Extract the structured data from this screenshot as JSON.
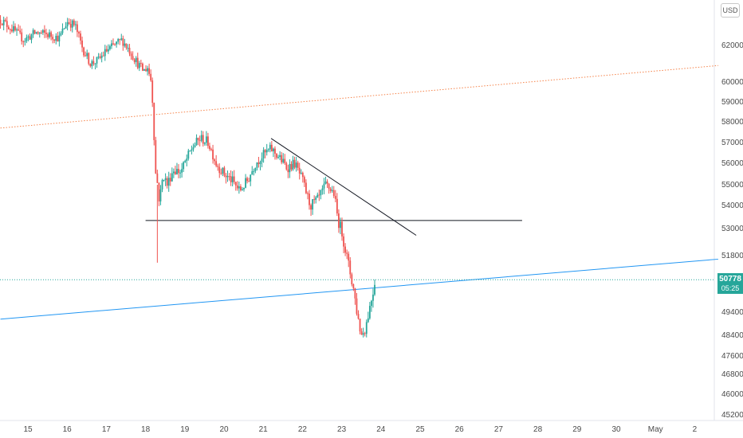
{
  "currency_label": "USD",
  "last_price": {
    "value": "50778",
    "countdown": "05:25",
    "color": "#26a69a"
  },
  "chart_data": {
    "type": "candlestick",
    "title": "",
    "y_ticks": [
      45200,
      46000,
      46800,
      47600,
      48400,
      49400,
      51800,
      53000,
      54000,
      55000,
      56000,
      57000,
      58000,
      59000,
      60000,
      62000
    ],
    "x_ticks": [
      "15",
      "16",
      "17",
      "18",
      "19",
      "20",
      "21",
      "22",
      "23",
      "24",
      "25",
      "26",
      "27",
      "28",
      "29",
      "30",
      "May",
      "2"
    ],
    "x_tick_days": [
      15,
      16,
      17,
      18,
      19,
      20,
      21,
      22,
      23,
      24,
      25,
      26,
      27,
      28,
      29,
      30,
      31,
      32
    ],
    "colors": {
      "up": "#26a69a",
      "down": "#ef5350"
    },
    "close_path": [
      [
        14.3,
        63400
      ],
      [
        14.6,
        62900
      ],
      [
        14.9,
        62300
      ],
      [
        15.2,
        62700
      ],
      [
        15.5,
        62600
      ],
      [
        15.8,
        62400
      ],
      [
        16.0,
        63300
      ],
      [
        16.2,
        63100
      ],
      [
        16.4,
        61800
      ],
      [
        16.6,
        61000
      ],
      [
        16.8,
        61200
      ],
      [
        17.0,
        61700
      ],
      [
        17.2,
        62000
      ],
      [
        17.4,
        62300
      ],
      [
        17.6,
        61700
      ],
      [
        17.8,
        61000
      ],
      [
        17.95,
        60600
      ],
      [
        18.05,
        60800
      ],
      [
        18.15,
        60000
      ],
      [
        18.2,
        58200
      ],
      [
        18.25,
        55600
      ],
      [
        18.3,
        55100
      ],
      [
        18.35,
        54200
      ],
      [
        18.45,
        55500
      ],
      [
        18.55,
        55000
      ],
      [
        18.7,
        55700
      ],
      [
        18.9,
        55600
      ],
      [
        19.0,
        56000
      ],
      [
        19.2,
        56800
      ],
      [
        19.4,
        57200
      ],
      [
        19.6,
        57000
      ],
      [
        19.8,
        56000
      ],
      [
        20.0,
        55500
      ],
      [
        20.2,
        55200
      ],
      [
        20.4,
        54700
      ],
      [
        20.6,
        55200
      ],
      [
        20.8,
        56000
      ],
      [
        21.0,
        56400
      ],
      [
        21.2,
        56700
      ],
      [
        21.4,
        56300
      ],
      [
        21.6,
        55800
      ],
      [
        21.8,
        56000
      ],
      [
        22.0,
        55200
      ],
      [
        22.2,
        54000
      ],
      [
        22.4,
        54300
      ],
      [
        22.6,
        55000
      ],
      [
        22.8,
        54600
      ],
      [
        22.9,
        53400
      ],
      [
        23.0,
        52900
      ],
      [
        23.1,
        52000
      ],
      [
        23.2,
        51200
      ],
      [
        23.3,
        50400
      ],
      [
        23.4,
        49300
      ],
      [
        23.5,
        48400
      ],
      [
        23.6,
        48700
      ],
      [
        23.7,
        49500
      ],
      [
        23.8,
        50300
      ],
      [
        23.85,
        50778
      ]
    ],
    "horizontal_support": {
      "price": 53350,
      "from_day": 18.0,
      "to_day": 27.6
    },
    "descending_trendline": {
      "start": [
        21.2,
        57200
      ],
      "end": [
        24.9,
        52700
      ]
    },
    "orange_trendline": {
      "start": [
        14.3,
        57700
      ],
      "end": [
        32.6,
        60900
      ],
      "color": "#f5834a"
    },
    "blue_trendline": {
      "start": [
        14.3,
        49100
      ],
      "end": [
        32.6,
        51650
      ],
      "color": "#2196f3"
    },
    "last_price_line": {
      "price": 50778,
      "color": "#26a69a"
    }
  }
}
